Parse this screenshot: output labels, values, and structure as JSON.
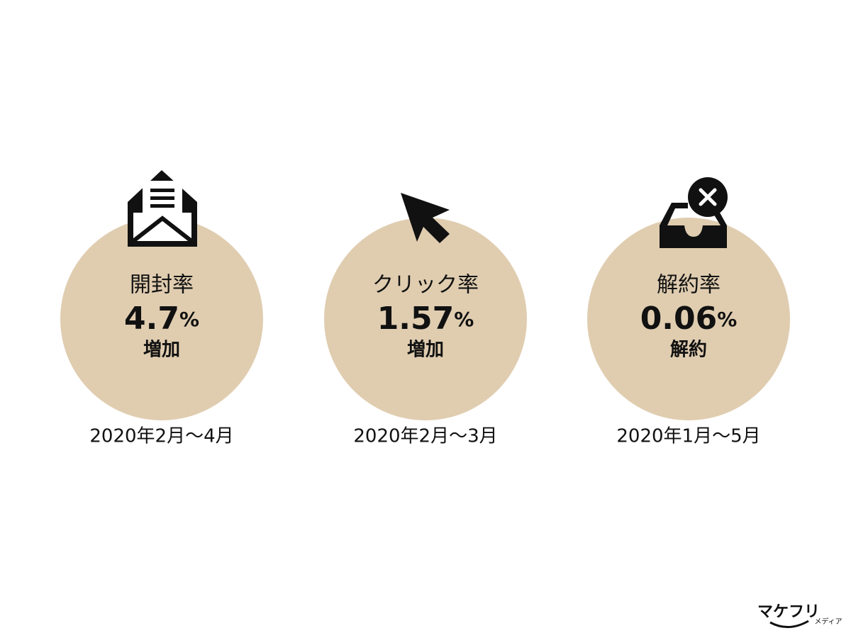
{
  "cards": [
    {
      "label": "開封率",
      "value": "4.7",
      "unit": "%",
      "note": "増加",
      "period": "2020年2月〜4月"
    },
    {
      "label": "クリック率",
      "value": "1.57",
      "unit": "%",
      "note": "増加",
      "period": "2020年2月〜3月"
    },
    {
      "label": "解約率",
      "value": "0.06",
      "unit": "%",
      "note": "解約",
      "period": "2020年1月〜5月"
    }
  ],
  "logo": {
    "name": "マケフリ",
    "sub": "メディア"
  }
}
